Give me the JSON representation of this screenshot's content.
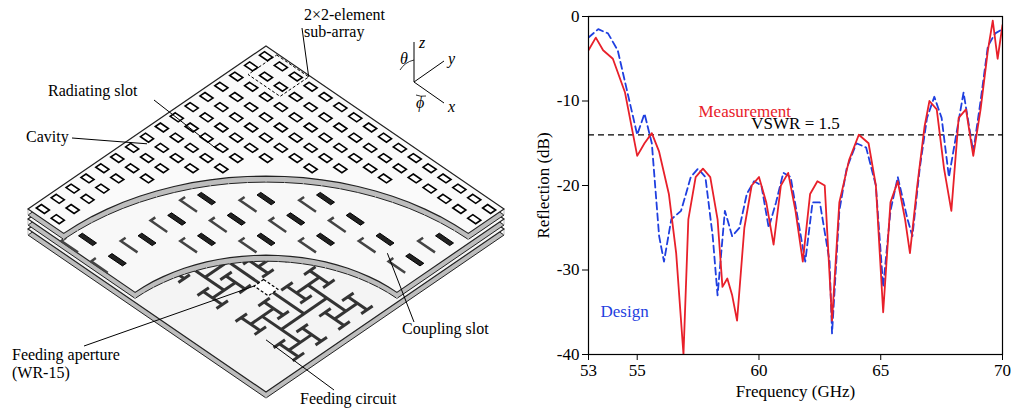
{
  "diagram": {
    "labels": {
      "subarray": [
        "2×2-element",
        "sub-array"
      ],
      "radiating_slot": "Radiating slot",
      "cavity": "Cavity",
      "feeding_aperture": [
        "Feeding aperture",
        "(WR-15)"
      ],
      "feeding_circuit": "Feeding circuit",
      "coupling_slot": "Coupling slot"
    },
    "axes": {
      "z": "z",
      "y": "y",
      "x": "x",
      "theta": "θ",
      "phi": "ϕ"
    }
  },
  "chart_data": {
    "type": "line",
    "x_label": "Frequency (GHz)",
    "y_label": "Reflection (dB)",
    "xlim": [
      53,
      70
    ],
    "xticks": [
      53,
      55,
      60,
      65,
      70
    ],
    "ylim": [
      -40,
      0
    ],
    "yticks": [
      -40,
      -30,
      -20,
      -10,
      0
    ],
    "grid": false,
    "hline": {
      "value": -14,
      "label": "VSWR = 1.5",
      "line_style": "dashed"
    },
    "series": [
      {
        "name": "Measurement",
        "color": "#e8202a",
        "line_style": "solid",
        "x": [
          53.0,
          53.3,
          53.6,
          54.0,
          54.5,
          55.0,
          55.3,
          55.6,
          55.9,
          56.3,
          56.6,
          56.9,
          57.1,
          57.4,
          57.7,
          58.0,
          58.3,
          58.5,
          58.7,
          58.9,
          59.1,
          59.4,
          59.7,
          60.0,
          60.3,
          60.6,
          60.9,
          61.2,
          61.5,
          61.8,
          62.1,
          62.4,
          62.7,
          63.0,
          63.3,
          63.7,
          64.1,
          64.5,
          64.8,
          65.1,
          65.4,
          65.7,
          66.0,
          66.2,
          66.5,
          66.8,
          67.0,
          67.3,
          67.6,
          67.9,
          68.2,
          68.5,
          68.8,
          69.1,
          69.4,
          69.6,
          69.8,
          70.0
        ],
        "values": [
          -4,
          -2.5,
          -4,
          -5,
          -9,
          -16.5,
          -15,
          -13.8,
          -16,
          -21,
          -28,
          -40,
          -24,
          -19,
          -18,
          -19,
          -24,
          -32,
          -31,
          -33,
          -36,
          -25,
          -20,
          -19,
          -22,
          -27,
          -20,
          -18.5,
          -23,
          -29,
          -21,
          -19.5,
          -20,
          -36,
          -22,
          -17,
          -14,
          -15,
          -20,
          -35,
          -22,
          -19.5,
          -24,
          -28,
          -20,
          -13,
          -10,
          -11,
          -18,
          -23,
          -12,
          -11,
          -16.5,
          -11,
          -4,
          -0.5,
          -5,
          -1
        ]
      },
      {
        "name": "Design",
        "color": "#1f3fe0",
        "line_style": "dashed",
        "x": [
          53.0,
          53.4,
          53.8,
          54.2,
          54.6,
          55.0,
          55.3,
          55.6,
          55.9,
          56.1,
          56.4,
          56.8,
          57.2,
          57.5,
          57.8,
          58.1,
          58.3,
          58.6,
          58.9,
          59.2,
          59.5,
          59.8,
          60.1,
          60.4,
          60.7,
          61.0,
          61.3,
          61.6,
          61.9,
          62.2,
          62.5,
          62.9,
          63.0,
          63.3,
          63.6,
          64.0,
          64.4,
          64.8,
          65.1,
          65.4,
          65.7,
          66.1,
          66.3,
          66.6,
          66.9,
          67.2,
          67.5,
          67.8,
          68.1,
          68.4,
          68.8,
          69.1,
          69.4,
          69.7,
          70.0
        ],
        "values": [
          -2.5,
          -1.5,
          -2,
          -4,
          -9,
          -14,
          -11.5,
          -15,
          -26,
          -29,
          -24,
          -23,
          -19,
          -18,
          -19,
          -26,
          -33,
          -23,
          -26,
          -25,
          -21,
          -19.5,
          -20,
          -25,
          -22,
          -18.5,
          -19,
          -24,
          -29,
          -22,
          -22,
          -29,
          -37.5,
          -23,
          -18,
          -15,
          -15.5,
          -20,
          -32,
          -23,
          -19,
          -24,
          -26,
          -18,
          -12,
          -9.5,
          -12,
          -19,
          -14,
          -9,
          -16,
          -10,
          -3.5,
          -2,
          -1.5
        ]
      }
    ]
  }
}
